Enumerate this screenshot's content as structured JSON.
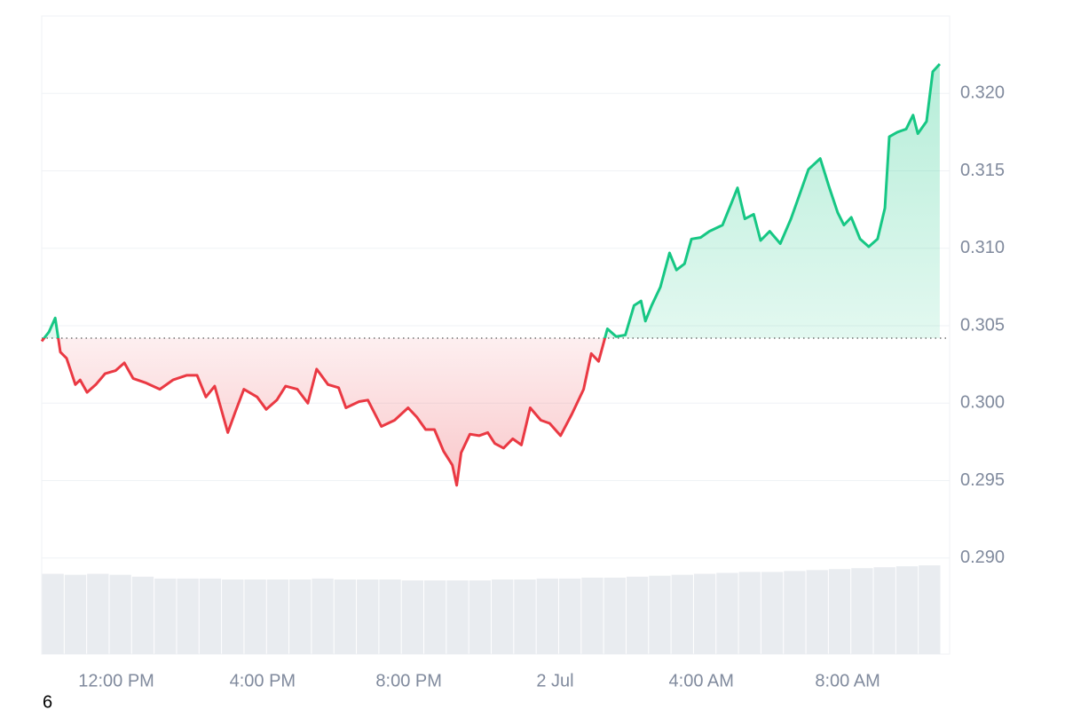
{
  "chart_data": {
    "type": "line",
    "x": [
      -2.04,
      -1.84,
      -1.67,
      -1.53,
      -1.36,
      -1.12,
      -0.99,
      -0.8,
      -0.56,
      -0.31,
      -0.02,
      0.22,
      0.46,
      0.82,
      1.19,
      1.55,
      1.92,
      2.21,
      2.45,
      2.69,
      3.05,
      3.25,
      3.49,
      3.85,
      4.1,
      4.39,
      4.63,
      4.95,
      5.24,
      5.48,
      5.79,
      6.08,
      6.28,
      6.64,
      6.88,
      7.25,
      7.61,
      7.98,
      8.22,
      8.46,
      8.7,
      8.95,
      9.19,
      9.31,
      9.43,
      9.67,
      9.92,
      10.16,
      10.35,
      10.59,
      10.84,
      11.08,
      11.32,
      11.61,
      11.85,
      12.15,
      12.46,
      12.78,
      12.99,
      13.19,
      13.43,
      13.67,
      13.92,
      14.16,
      14.35,
      14.47,
      14.64,
      14.88,
      15.13,
      15.32,
      15.54,
      15.73,
      15.98,
      16.22,
      16.58,
      16.82,
      16.99,
      17.19,
      17.43,
      17.62,
      17.87,
      18.16,
      18.45,
      18.69,
      18.93,
      19.25,
      19.49,
      19.73,
      19.9,
      20.1,
      20.34,
      20.58,
      20.82,
      21.02,
      21.14,
      21.36,
      21.6,
      21.79,
      21.92,
      22.16,
      22.33,
      22.52
    ],
    "values": [
      0.304,
      0.3046,
      0.3055,
      0.3033,
      0.3029,
      0.3012,
      0.3015,
      0.3007,
      0.3012,
      0.3019,
      0.3021,
      0.3026,
      0.3016,
      0.3013,
      0.3009,
      0.3015,
      0.3018,
      0.3018,
      0.3004,
      0.3011,
      0.2981,
      0.2994,
      0.3009,
      0.3004,
      0.2996,
      0.3002,
      0.3011,
      0.3009,
      0.3,
      0.3022,
      0.3012,
      0.301,
      0.2997,
      0.3001,
      0.3002,
      0.2985,
      0.2989,
      0.2997,
      0.2991,
      0.2983,
      0.2983,
      0.2969,
      0.296,
      0.2947,
      0.2968,
      0.298,
      0.2979,
      0.2981,
      0.2974,
      0.2971,
      0.2977,
      0.2973,
      0.2997,
      0.2989,
      0.2987,
      0.2979,
      0.2993,
      0.3009,
      0.3032,
      0.3027,
      0.3048,
      0.3043,
      0.3044,
      0.3063,
      0.3066,
      0.3053,
      0.3063,
      0.3075,
      0.3097,
      0.3086,
      0.309,
      0.3106,
      0.3107,
      0.3111,
      0.3115,
      0.3129,
      0.3139,
      0.3119,
      0.3122,
      0.3105,
      0.3111,
      0.3103,
      0.3119,
      0.3135,
      0.3151,
      0.3158,
      0.314,
      0.3123,
      0.3115,
      0.312,
      0.3106,
      0.3101,
      0.3106,
      0.3126,
      0.3172,
      0.3175,
      0.3177,
      0.3186,
      0.3174,
      0.3182,
      0.3214,
      0.3219
    ],
    "baseline": 0.3042,
    "up_color": "#16c784",
    "down_color": "#ea3943",
    "volume": {
      "color": "#e9ecf0",
      "values": [
        85,
        84,
        85,
        84,
        82,
        80,
        80,
        80,
        79,
        79,
        79,
        79,
        80,
        79,
        79,
        79,
        78,
        78,
        78,
        78,
        79,
        79,
        80,
        80,
        81,
        81,
        82,
        83,
        84,
        85,
        86,
        87,
        87,
        88,
        89,
        90,
        91,
        92,
        93,
        94
      ]
    },
    "xlim": [
      -2.04,
      22.79
    ],
    "xticks": [
      {
        "value": 0,
        "label": "12:00 PM"
      },
      {
        "value": 4,
        "label": "4:00 PM"
      },
      {
        "value": 8,
        "label": "8:00 PM"
      },
      {
        "value": 12,
        "label": "2 Jul"
      },
      {
        "value": 16,
        "label": "4:00 AM"
      },
      {
        "value": 20,
        "label": "8:00 AM"
      }
    ],
    "ylim": [
      0.2838,
      0.325
    ],
    "yticks": [
      {
        "value": 0.29,
        "label": "0.290"
      },
      {
        "value": 0.295,
        "label": "0.295"
      },
      {
        "value": 0.3,
        "label": "0.300"
      },
      {
        "value": 0.305,
        "label": "0.305"
      },
      {
        "value": 0.31,
        "label": "0.310"
      },
      {
        "value": 0.315,
        "label": "0.315"
      },
      {
        "value": 0.32,
        "label": "0.320"
      }
    ],
    "grid": true,
    "footnote": "6"
  }
}
